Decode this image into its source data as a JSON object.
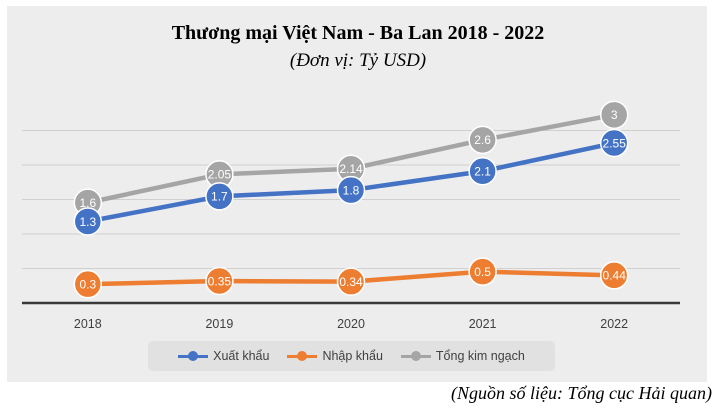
{
  "chart_data": {
    "type": "line",
    "title": "Thương mại Việt Nam - Ba Lan 2018 - 2022",
    "subtitle": "(Đơn vị: Tỷ USD)",
    "categories": [
      "2018",
      "2019",
      "2020",
      "2021",
      "2022"
    ],
    "series": [
      {
        "name": "Xuất khẩu",
        "color": "#4472c4",
        "values": [
          1.3,
          1.7,
          1.8,
          2.1,
          2.55
        ],
        "labels": [
          "1.3",
          "1.7",
          "1.8",
          "2.1",
          "2.55"
        ]
      },
      {
        "name": "Nhập khẩu",
        "color": "#ed7d31",
        "values": [
          0.3,
          0.35,
          0.34,
          0.5,
          0.44
        ],
        "labels": [
          "0.3",
          "0.35",
          "0.34",
          "0.5",
          "0.44"
        ]
      },
      {
        "name": "Tổng kim ngạch",
        "color": "#a5a5a5",
        "values": [
          1.6,
          2.05,
          2.14,
          2.6,
          3
        ],
        "labels": [
          "1.6",
          "2.05",
          "2.14",
          "2.6",
          "3"
        ]
      }
    ],
    "ylim": [
      0,
      3.3
    ],
    "grid": true,
    "legend_position": "bottom"
  },
  "source_note": "(Nguồn số liệu: Tổng cục Hải quan)"
}
